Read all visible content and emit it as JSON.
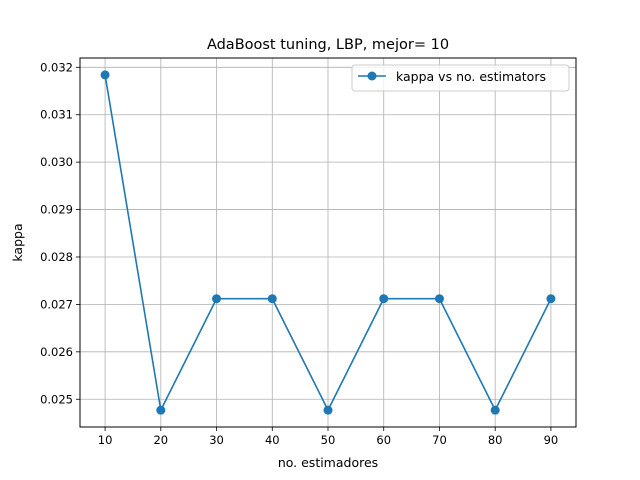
{
  "chart_data": {
    "type": "line",
    "title": "AdaBoost tuning, LBP, mejor= 10",
    "xlabel": "no. estimadores",
    "ylabel": "kappa",
    "x": [
      10,
      20,
      30,
      40,
      50,
      60,
      70,
      80,
      90
    ],
    "series": [
      {
        "name": "kappa vs no. estimators",
        "values": [
          0.03184,
          0.02477,
          0.02712,
          0.02712,
          0.02477,
          0.02712,
          0.02712,
          0.02477,
          0.02712
        ]
      }
    ],
    "xticks": [
      "10",
      "20",
      "30",
      "40",
      "50",
      "60",
      "70",
      "80",
      "90"
    ],
    "yticks": [
      "0.025",
      "0.026",
      "0.027",
      "0.028",
      "0.029",
      "0.030",
      "0.031",
      "0.032"
    ],
    "xlim": [
      5.5,
      94.5
    ],
    "ylim": [
      0.024415,
      0.032196
    ],
    "grid": true,
    "legend_position": "upper right",
    "colors": {
      "series": "#1f77b4",
      "grid": "#b0b0b0",
      "axes": "#000000"
    }
  }
}
